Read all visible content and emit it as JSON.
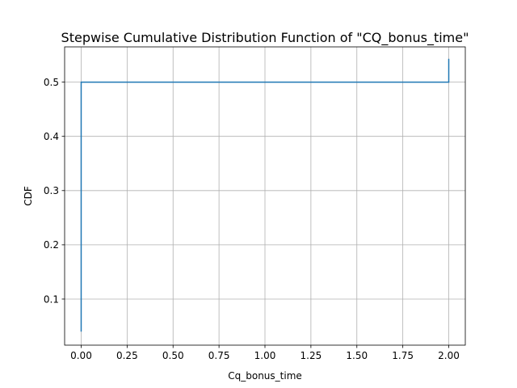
{
  "chart_data": {
    "type": "line",
    "drawstyle": "steps-post",
    "title": "Stepwise Cumulative Distribution Function of \"CQ_bonus_time\"",
    "xlabel": "Cq_bonus_time",
    "ylabel": "CDF",
    "xlim": [
      -0.09,
      2.09
    ],
    "ylim": [
      0.015,
      0.565
    ],
    "grid": true,
    "legend": "none",
    "line_color": "#1f77b4",
    "xticks": [
      0.0,
      0.25,
      0.5,
      0.75,
      1.0,
      1.25,
      1.5,
      1.75,
      2.0
    ],
    "xtick_labels": [
      "0.00",
      "0.25",
      "0.50",
      "0.75",
      "1.00",
      "1.25",
      "1.50",
      "1.75",
      "2.00"
    ],
    "yticks": [
      0.1,
      0.2,
      0.3,
      0.4,
      0.5
    ],
    "ytick_labels": [
      "0.1",
      "0.2",
      "0.3",
      "0.4",
      "0.5"
    ],
    "series": [
      {
        "x": [
          0.0,
          0.0,
          2.0,
          2.0
        ],
        "y": [
          0.04,
          0.5,
          0.5,
          0.543
        ]
      }
    ]
  }
}
